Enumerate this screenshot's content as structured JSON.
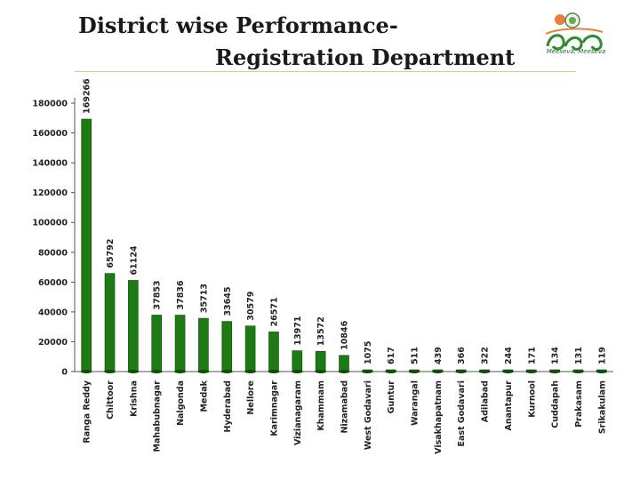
{
  "header": {
    "title_line1": "District wise Performance-",
    "title_line2": "Registration Department",
    "logo_caption": "Meeseva, Meeseva"
  },
  "chart_data": {
    "type": "bar",
    "title": "District wise Performance-Registration Department",
    "xlabel": "",
    "ylabel": "",
    "ylim": [
      0,
      180000
    ],
    "yticks": [
      0,
      20000,
      40000,
      60000,
      80000,
      100000,
      120000,
      140000,
      160000,
      180000
    ],
    "grid": false,
    "bar_color": "#1e7a12",
    "categories": [
      "Ranga Reddy",
      "Chittoor",
      "Krishna",
      "Mahabubnagar",
      "Nalgonda",
      "Medak",
      "Hyderabad",
      "Nellore",
      "Karimnagar",
      "Vizianagaram",
      "Khammam",
      "Nizamabad",
      "West Godavari",
      "Guntur",
      "Warangal",
      "Visakhapatnam",
      "East Godavari",
      "Adilabad",
      "Anantapur",
      "Kurnool",
      "Cuddapah",
      "Prakasam",
      "Srikakulam"
    ],
    "values": [
      169266,
      65792,
      61124,
      37853,
      37836,
      35713,
      33645,
      30579,
      26571,
      13971,
      13572,
      10846,
      1075,
      617,
      511,
      439,
      366,
      322,
      244,
      171,
      134,
      131,
      119
    ]
  }
}
